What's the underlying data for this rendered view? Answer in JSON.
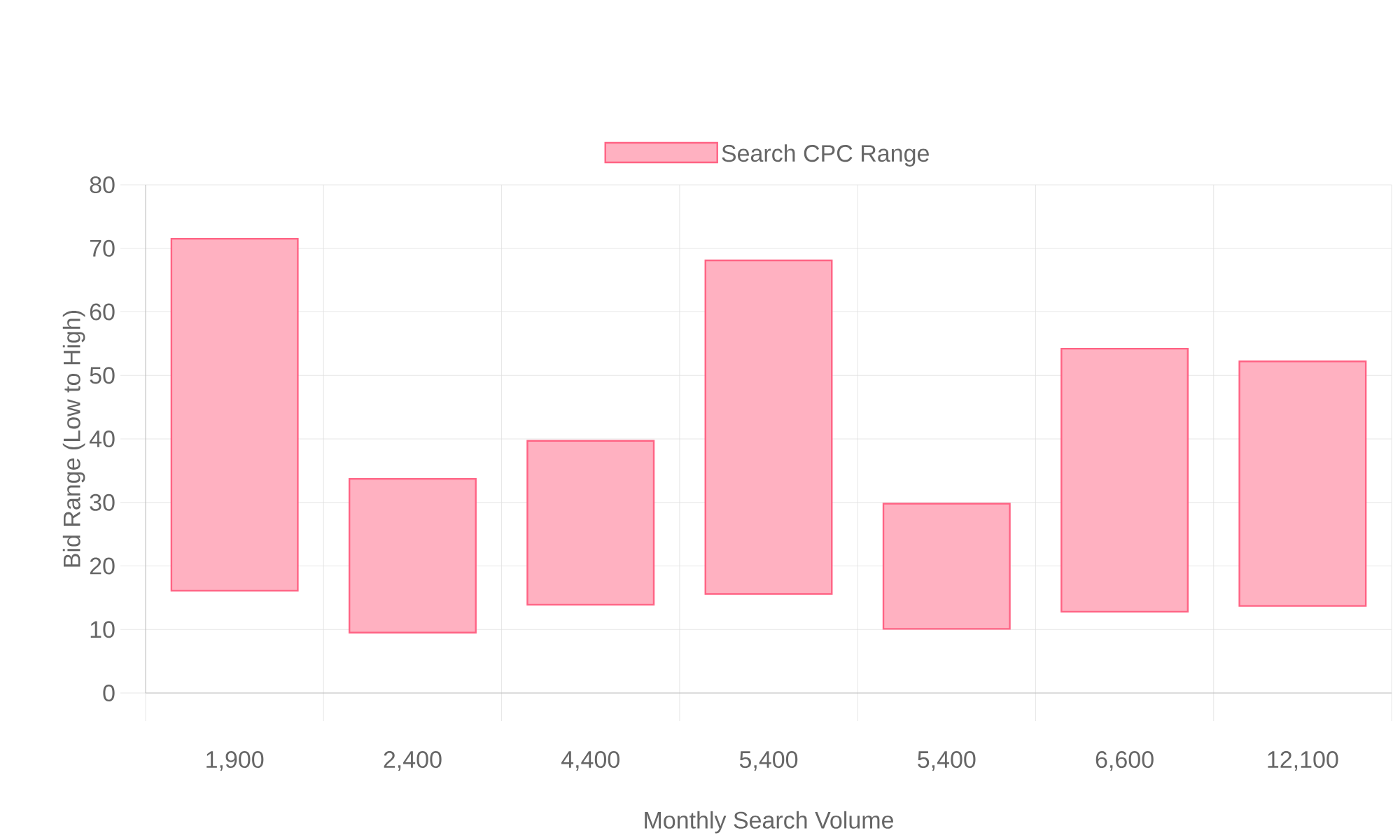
{
  "chart_data": {
    "type": "bar",
    "xlabel": "Monthly Search Volume",
    "ylabel": "Bid Range (Low to High)",
    "categories": [
      "1,900",
      "2,400",
      "4,400",
      "5,400",
      "5,400",
      "6,600",
      "12,100"
    ],
    "series": [
      {
        "name": "Search CPC Range",
        "color": "#ff6384",
        "values": [
          55.4,
          24.2,
          25.8,
          52.5,
          19.7,
          41.4,
          38.5
        ],
        "base": [
          16.1,
          9.5,
          13.9,
          15.6,
          10.1,
          12.8,
          13.7
        ]
      }
    ],
    "ylim": [
      0,
      80
    ],
    "yticks": [
      0,
      10,
      20,
      30,
      40,
      50,
      60,
      70,
      80
    ],
    "grid": true,
    "legend": "top"
  }
}
